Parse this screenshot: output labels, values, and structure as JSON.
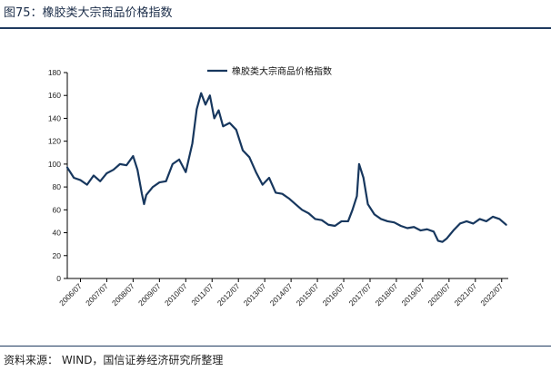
{
  "header": {
    "title": "图75：橡胶类大宗商品价格指数"
  },
  "footer": {
    "source": "资料来源：  WIND，国信证券经济研究所整理"
  },
  "colors": {
    "line": "#17375e",
    "axis": "#000000",
    "rule": "#1f3a5f"
  },
  "chart_data": {
    "type": "line",
    "series": [
      {
        "name": "橡胶类大宗商品价格指数",
        "x": [
          "2006-01",
          "2006-04",
          "2006-07",
          "2006-10",
          "2007-01",
          "2007-04",
          "2007-07",
          "2007-10",
          "2008-01",
          "2008-04",
          "2008-07",
          "2008-09",
          "2008-11",
          "2008-12",
          "2009-01",
          "2009-04",
          "2009-07",
          "2009-10",
          "2010-01",
          "2010-04",
          "2010-07",
          "2010-10",
          "2010-12",
          "2011-02",
          "2011-04",
          "2011-06",
          "2011-08",
          "2011-10",
          "2011-12",
          "2012-03",
          "2012-06",
          "2012-09",
          "2012-12",
          "2013-03",
          "2013-06",
          "2013-09",
          "2013-12",
          "2014-03",
          "2014-06",
          "2014-09",
          "2014-12",
          "2015-03",
          "2015-06",
          "2015-09",
          "2015-12",
          "2016-03",
          "2016-06",
          "2016-09",
          "2016-11",
          "2017-01",
          "2017-02",
          "2017-04",
          "2017-06",
          "2017-09",
          "2017-12",
          "2018-03",
          "2018-06",
          "2018-09",
          "2018-12",
          "2019-03",
          "2019-06",
          "2019-09",
          "2019-12",
          "2020-02",
          "2020-04",
          "2020-06",
          "2020-09",
          "2020-12",
          "2021-03",
          "2021-06",
          "2021-09",
          "2021-12",
          "2022-03",
          "2022-06",
          "2022-09"
        ],
        "values": [
          97,
          88,
          86,
          82,
          90,
          85,
          92,
          95,
          100,
          99,
          107,
          95,
          74,
          65,
          73,
          80,
          84,
          85,
          100,
          104,
          93,
          118,
          148,
          162,
          152,
          160,
          140,
          147,
          133,
          136,
          130,
          112,
          106,
          93,
          82,
          88,
          75,
          74,
          70,
          65,
          60,
          57,
          52,
          51,
          47,
          46,
          50,
          50,
          60,
          72,
          100,
          88,
          65,
          56,
          52,
          50,
          49,
          46,
          44,
          45,
          42,
          43,
          41,
          33,
          32,
          35,
          42,
          48,
          50,
          48,
          52,
          50,
          54,
          52,
          47
        ]
      }
    ],
    "x_tick_labels": [
      "2006/07",
      "2007/07",
      "2008/07",
      "2009/07",
      "2010/07",
      "2011/07",
      "2012/07",
      "2013/07",
      "2014/07",
      "2015/07",
      "2016/07",
      "2017/07",
      "2018/07",
      "2019/07",
      "2020/07",
      "2021/07",
      "2022/07"
    ],
    "y_ticks": [
      0,
      20,
      40,
      60,
      80,
      100,
      120,
      140,
      160,
      180
    ],
    "ylim": [
      0,
      180
    ],
    "xlim": [
      "2006-01",
      "2022-10"
    ],
    "legend": "top-center",
    "grid": false
  }
}
